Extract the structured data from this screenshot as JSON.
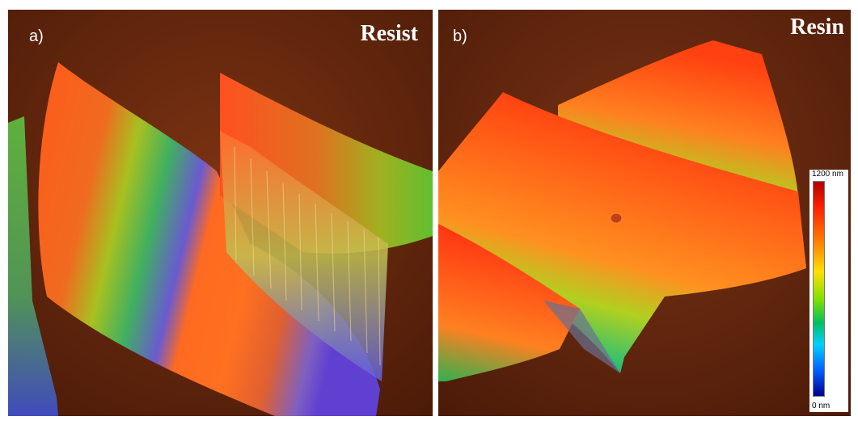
{
  "panel_a": {
    "label": "a)",
    "title": "Resist"
  },
  "panel_b": {
    "label": "b)",
    "title": "Resin"
  },
  "colorbar": {
    "max_label": "1200 nm",
    "min_label": "0 nm",
    "colors": [
      "#00008c",
      "#0060ff",
      "#00d0ff",
      "#00c060",
      "#80e000",
      "#ffe000",
      "#ff8c00",
      "#ff2000",
      "#b00000"
    ]
  },
  "colors": {
    "background": "#6b2a10"
  }
}
